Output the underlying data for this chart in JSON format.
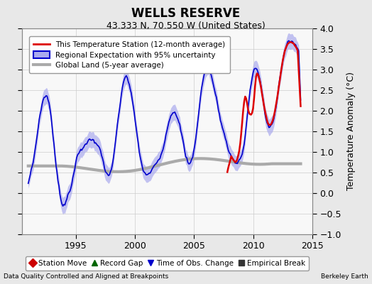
{
  "title": "WELLS RESERVE",
  "subtitle": "43.333 N, 70.550 W (United States)",
  "ylabel": "Temperature Anomaly (°C)",
  "xlabel_left": "Data Quality Controlled and Aligned at Breakpoints",
  "xlabel_right": "Berkeley Earth",
  "ylim": [
    -1,
    4
  ],
  "xlim": [
    1990.5,
    2014.5
  ],
  "yticks": [
    -1,
    -0.5,
    0,
    0.5,
    1,
    1.5,
    2,
    2.5,
    3,
    3.5,
    4
  ],
  "xticks": [
    1995,
    2000,
    2005,
    2010,
    2015
  ],
  "line_color_station": "#dd0000",
  "line_color_regional": "#0000cc",
  "fill_color_regional": "#aaaaee",
  "line_color_global": "#aaaaaa",
  "background_color": "#e8e8e8",
  "legend_items": [
    "This Temperature Station (12-month average)",
    "Regional Expectation with 95% uncertainty",
    "Global Land (5-year average)"
  ],
  "bottom_legend": [
    {
      "marker": "D",
      "color": "#cc0000",
      "label": "Station Move"
    },
    {
      "marker": "^",
      "color": "#006600",
      "label": "Record Gap"
    },
    {
      "marker": "v",
      "color": "#0000cc",
      "label": "Time of Obs. Change"
    },
    {
      "marker": "s",
      "color": "#333333",
      "label": "Empirical Break"
    }
  ]
}
